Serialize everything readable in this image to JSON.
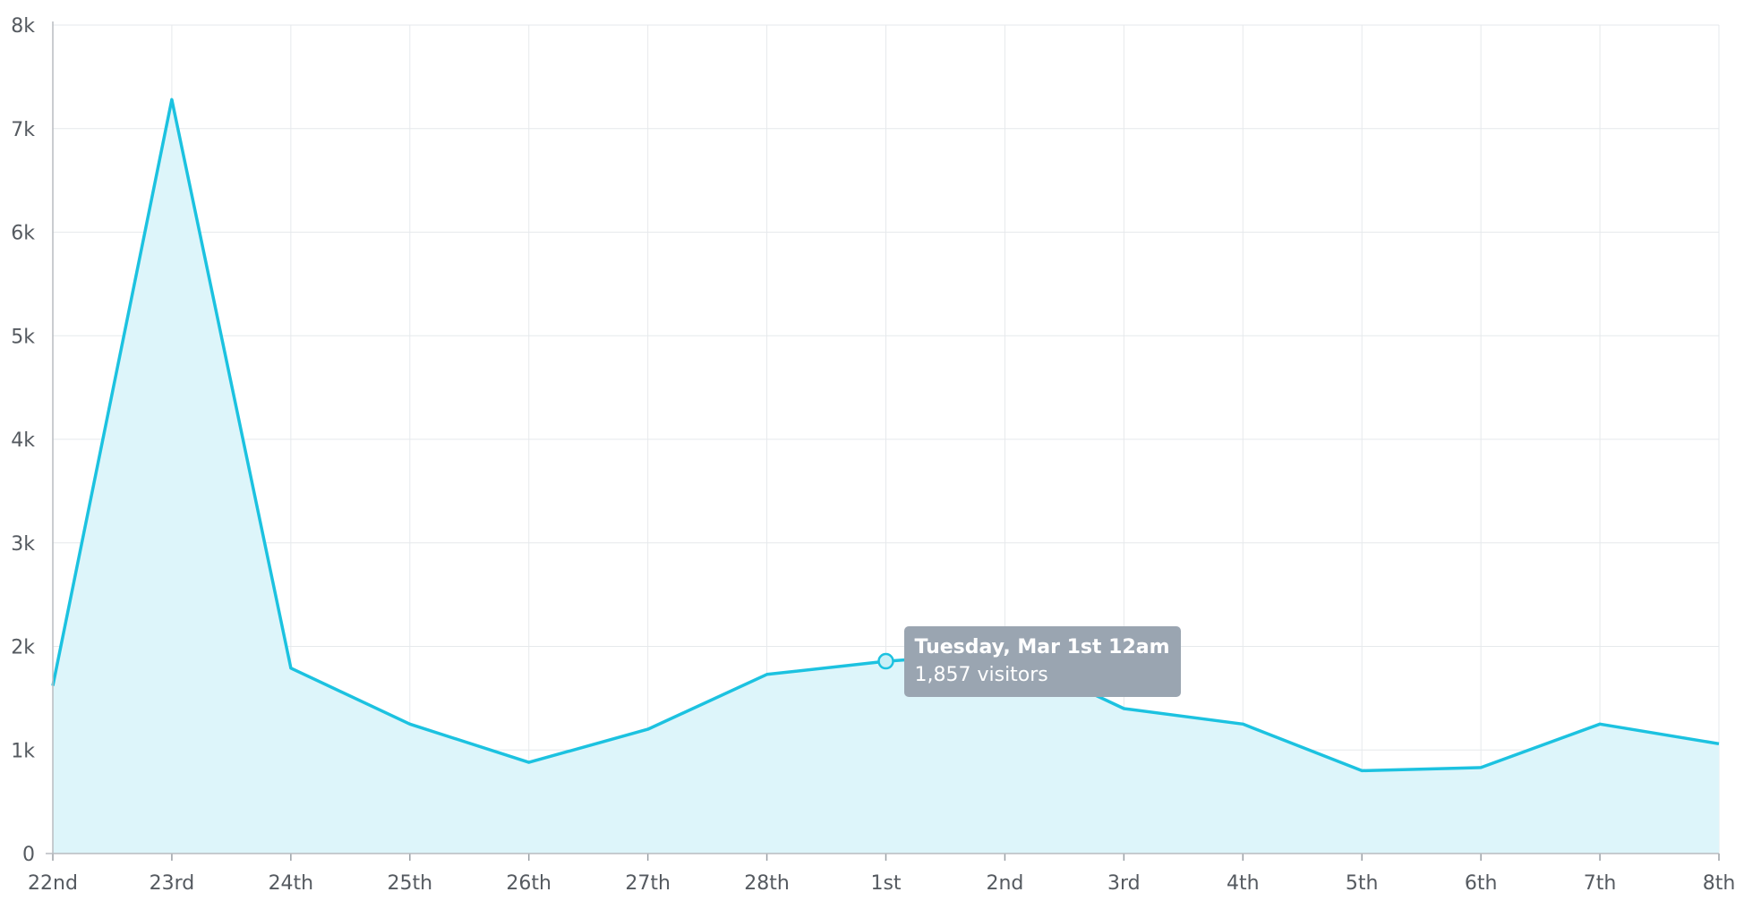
{
  "chart_data": {
    "type": "area",
    "categories": [
      "22nd",
      "23rd",
      "24th",
      "25th",
      "26th",
      "27th",
      "28th",
      "1st",
      "2nd",
      "3rd",
      "4th",
      "5th",
      "6th",
      "7th",
      "8th"
    ],
    "series": [
      {
        "values": [
          1620,
          7280,
          1790,
          1250,
          880,
          1200,
          1730,
          1857,
          1940,
          1400,
          1250,
          800,
          830,
          1250,
          1060
        ]
      }
    ],
    "yticks": [
      "0",
      "1k",
      "2k",
      "3k",
      "4k",
      "5k",
      "6k",
      "7k",
      "8k"
    ],
    "ylim": [
      0,
      8000
    ],
    "grid": true,
    "line_color": "#1cc2e0",
    "fill_color": "#ddf5fa",
    "tooltip": {
      "category": "1st",
      "value": 1857,
      "title": "Tuesday, Mar 1st 12am",
      "line": "1,857 visitors"
    }
  }
}
